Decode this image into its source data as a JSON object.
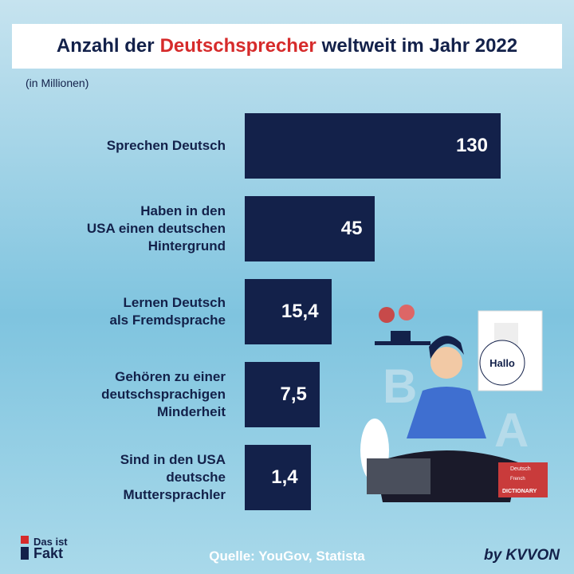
{
  "chart_data": {
    "type": "bar",
    "orientation": "horizontal",
    "title": [
      "Anzahl der",
      "Deutschsprecher",
      "weltweit im Jahr 2022"
    ],
    "title_highlight_color": "#d62b2b",
    "subtitle": "(in Millionen)",
    "categories": [
      "Sprechen Deutsch",
      "Haben in den\nUSA einen deutschen\nHintergrund",
      "Lernen Deutsch\nals Fremdsprache",
      "Gehören zu einer\ndeutschsprachigen\nMinderheit",
      "Sind in den USA\ndeutsche\nMuttersprachler"
    ],
    "values": [
      130,
      45,
      15.4,
      7.5,
      1.4
    ],
    "value_labels": [
      "130",
      "45",
      "15,4",
      "7,5",
      "1,4"
    ],
    "color": "#13214a",
    "source": "Quelle: YouGov, Statista"
  },
  "illustration": {
    "speech": "Hallo",
    "books": [
      "Deutsch",
      "French",
      "DICTIONARY"
    ],
    "letters": [
      "B",
      "A"
    ]
  },
  "footer": {
    "logo": [
      "Das ist",
      "Fakt"
    ],
    "brand": "by KVVON"
  }
}
